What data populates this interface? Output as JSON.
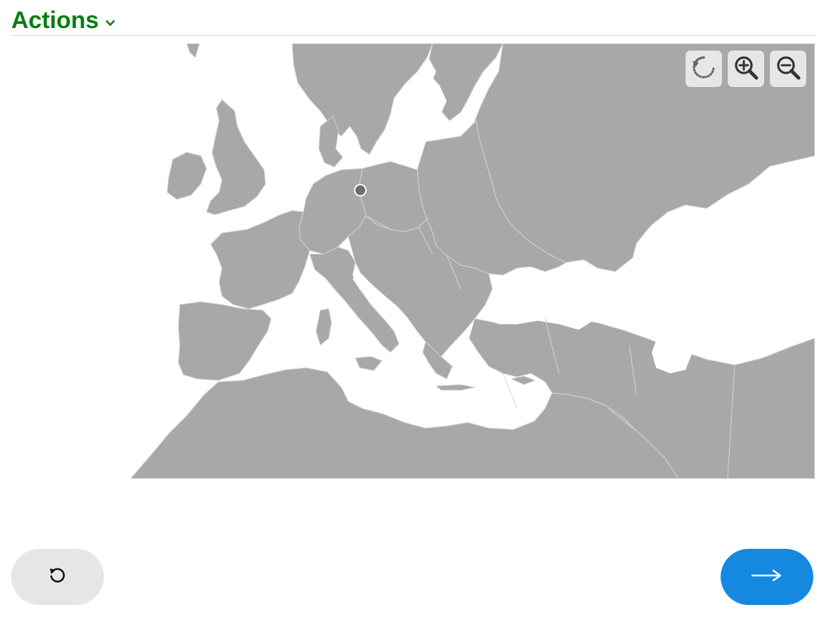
{
  "header": {
    "actions_label": "Actions",
    "actions_icon": "chevron-down-icon",
    "accent_color": "#0a7d12"
  },
  "map": {
    "region": "Europe",
    "land_color": "#a8a8a8",
    "water_color": "#ffffff",
    "border_color": "#d4d4d4",
    "marker_color": "#6e6e6e",
    "controls": [
      {
        "name": "reset-view-button",
        "icon": "rotate-icon"
      },
      {
        "name": "zoom-in-button",
        "icon": "zoom-in-icon"
      },
      {
        "name": "zoom-out-button",
        "icon": "zoom-out-icon"
      }
    ]
  },
  "footer": {
    "reset_icon": "undo-icon",
    "next_icon": "arrow-right-icon",
    "next_color": "#1589e0"
  }
}
